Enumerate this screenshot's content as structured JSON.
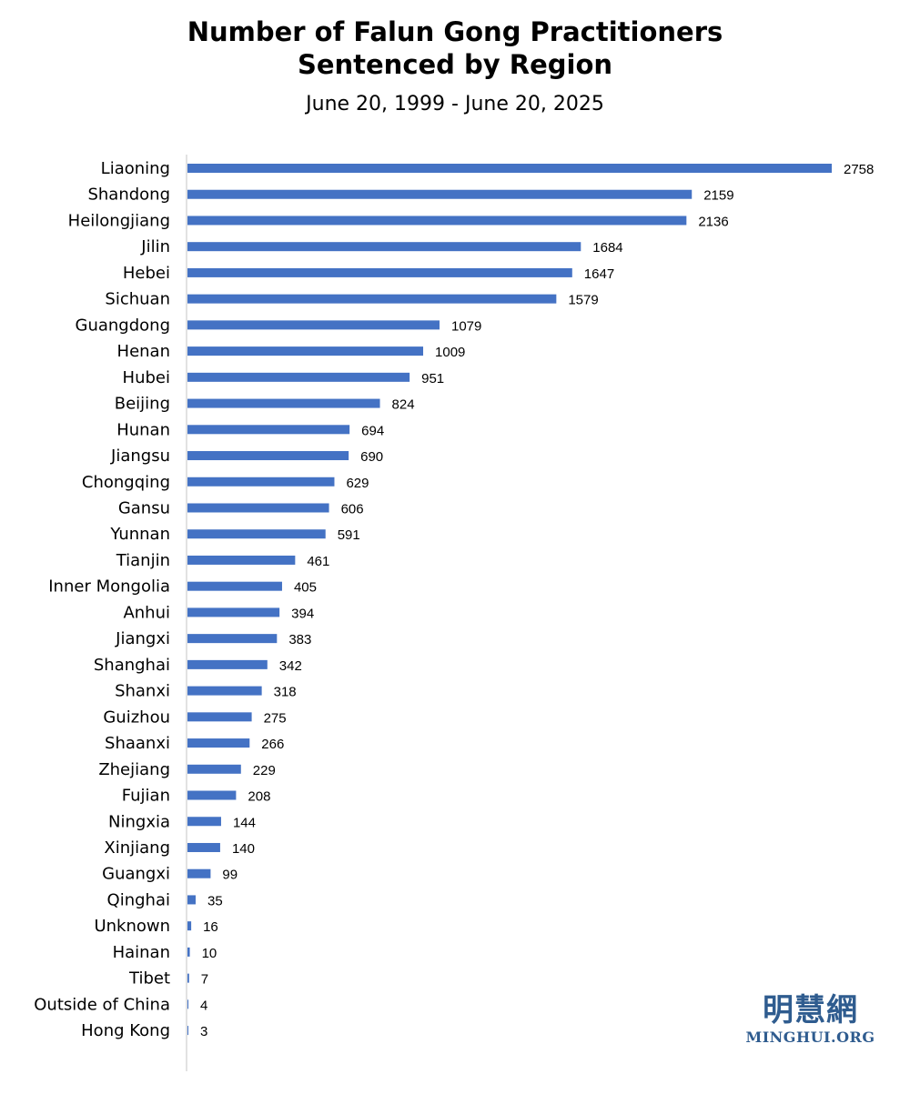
{
  "chart_data": {
    "type": "bar",
    "orientation": "horizontal",
    "title": [
      "Number of Falun Gong Practitioners",
      "Sentenced by Region"
    ],
    "subtitle": "June 20, 1999 - June 20, 2025",
    "xlabel": "",
    "ylabel": "",
    "xlim": [
      0,
      2758
    ],
    "grid": false,
    "legend": "none",
    "bar_color": "#4472c4",
    "axis_color": "#d9d9d9",
    "data_labels": true,
    "categories": [
      "Liaoning",
      "Shandong",
      "Heilongjiang",
      "Jilin",
      "Hebei",
      "Sichuan",
      "Guangdong",
      "Henan",
      "Hubei",
      "Beijing",
      "Hunan",
      "Jiangsu",
      "Chongqing",
      "Gansu",
      "Yunnan",
      "Tianjin",
      "Inner Mongolia",
      "Anhui",
      "Jiangxi",
      "Shanghai",
      "Shanxi",
      "Guizhou",
      "Shaanxi",
      "Zhejiang",
      "Fujian",
      "Ningxia",
      "Xinjiang",
      "Guangxi",
      "Qinghai",
      "Unknown",
      "Hainan",
      "Tibet",
      "Outside of China",
      "Hong Kong"
    ],
    "values": [
      2758,
      2159,
      2136,
      1684,
      1647,
      1579,
      1079,
      1009,
      951,
      824,
      694,
      690,
      629,
      606,
      591,
      461,
      405,
      394,
      383,
      342,
      318,
      275,
      266,
      229,
      208,
      144,
      140,
      99,
      35,
      16,
      10,
      7,
      4,
      3
    ]
  },
  "watermark": {
    "chinese": "明慧網",
    "english": "MINGHUI.ORG",
    "color": "#2f5c8f"
  }
}
